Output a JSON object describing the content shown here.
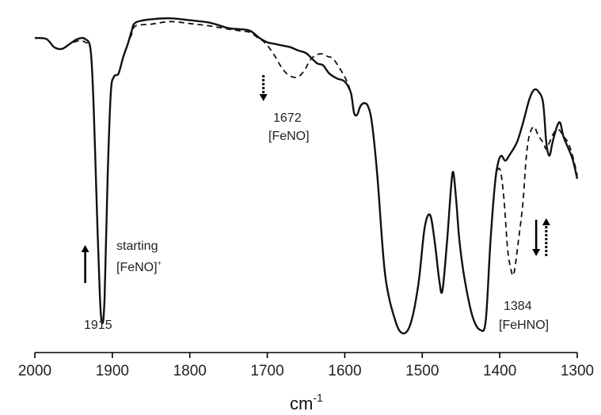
{
  "chart_data": {
    "type": "line",
    "xlabel": "cm",
    "xlabel_superscript": "-1",
    "xlim": [
      2000,
      1300
    ],
    "x_reversed": true,
    "ylim": [
      0,
      1
    ],
    "y_axis_shown": false,
    "grid": false,
    "ticks": [
      2000,
      1900,
      1800,
      1700,
      1600,
      1500,
      1400,
      1300
    ],
    "tick_labels": [
      "2000",
      "1900",
      "1800",
      "1700",
      "1600",
      "1500",
      "1400",
      "1300"
    ],
    "series": [
      {
        "style": "solid",
        "points": [
          [
            2000,
            0.918
          ],
          [
            1985,
            0.915
          ],
          [
            1975,
            0.89
          ],
          [
            1965,
            0.885
          ],
          [
            1955,
            0.9
          ],
          [
            1945,
            0.915
          ],
          [
            1935,
            0.915
          ],
          [
            1928,
            0.88
          ],
          [
            1924,
            0.7
          ],
          [
            1920,
            0.4
          ],
          [
            1916,
            0.13
          ],
          [
            1913,
            0.05
          ],
          [
            1910,
            0.13
          ],
          [
            1906,
            0.5
          ],
          [
            1902,
            0.75
          ],
          [
            1898,
            0.8
          ],
          [
            1892,
            0.81
          ],
          [
            1886,
            0.86
          ],
          [
            1880,
            0.9
          ],
          [
            1875,
            0.94
          ],
          [
            1870,
            0.965
          ],
          [
            1850,
            0.975
          ],
          [
            1825,
            0.978
          ],
          [
            1800,
            0.972
          ],
          [
            1775,
            0.965
          ],
          [
            1750,
            0.948
          ],
          [
            1735,
            0.945
          ],
          [
            1722,
            0.94
          ],
          [
            1710,
            0.918
          ],
          [
            1700,
            0.905
          ],
          [
            1690,
            0.9
          ],
          [
            1680,
            0.895
          ],
          [
            1670,
            0.89
          ],
          [
            1660,
            0.88
          ],
          [
            1650,
            0.872
          ],
          [
            1640,
            0.85
          ],
          [
            1635,
            0.84
          ],
          [
            1628,
            0.835
          ],
          [
            1620,
            0.81
          ],
          [
            1610,
            0.795
          ],
          [
            1603,
            0.79
          ],
          [
            1598,
            0.78
          ],
          [
            1592,
            0.75
          ],
          [
            1588,
            0.69
          ],
          [
            1584,
            0.685
          ],
          [
            1580,
            0.71
          ],
          [
            1575,
            0.72
          ],
          [
            1570,
            0.71
          ],
          [
            1565,
            0.66
          ],
          [
            1558,
            0.5
          ],
          [
            1548,
            0.2
          ],
          [
            1535,
            0.06
          ],
          [
            1525,
            0.02
          ],
          [
            1515,
            0.05
          ],
          [
            1505,
            0.17
          ],
          [
            1497,
            0.34
          ],
          [
            1490,
            0.38
          ],
          [
            1484,
            0.3
          ],
          [
            1478,
            0.18
          ],
          [
            1474,
            0.15
          ],
          [
            1468,
            0.3
          ],
          [
            1463,
            0.46
          ],
          [
            1460,
            0.51
          ],
          [
            1456,
            0.42
          ],
          [
            1452,
            0.3
          ],
          [
            1445,
            0.18
          ],
          [
            1435,
            0.07
          ],
          [
            1425,
            0.03
          ],
          [
            1418,
            0.06
          ],
          [
            1412,
            0.3
          ],
          [
            1406,
            0.48
          ],
          [
            1402,
            0.54
          ],
          [
            1398,
            0.56
          ],
          [
            1393,
            0.545
          ],
          [
            1388,
            0.56
          ],
          [
            1378,
            0.6
          ],
          [
            1370,
            0.66
          ],
          [
            1362,
            0.73
          ],
          [
            1356,
            0.76
          ],
          [
            1350,
            0.755
          ],
          [
            1344,
            0.72
          ],
          [
            1340,
            0.6
          ],
          [
            1336,
            0.56
          ],
          [
            1332,
            0.6
          ],
          [
            1326,
            0.65
          ],
          [
            1322,
            0.66
          ],
          [
            1318,
            0.62
          ],
          [
            1312,
            0.585
          ],
          [
            1306,
            0.55
          ],
          [
            1300,
            0.49
          ]
        ]
      },
      {
        "style": "dashed",
        "points": [
          [
            1950,
            0.905
          ],
          [
            1942,
            0.91
          ],
          [
            1935,
            0.905
          ],
          [
            1928,
            0.88
          ],
          [
            1924,
            0.7
          ],
          [
            1920,
            0.4
          ],
          [
            1916,
            0.13
          ],
          [
            1913,
            0.05
          ],
          [
            1910,
            0.13
          ],
          [
            1906,
            0.5
          ],
          [
            1902,
            0.75
          ],
          [
            1898,
            0.8
          ],
          [
            1892,
            0.81
          ],
          [
            1886,
            0.86
          ],
          [
            1880,
            0.9
          ],
          [
            1875,
            0.93
          ],
          [
            1870,
            0.955
          ],
          [
            1850,
            0.96
          ],
          [
            1825,
            0.968
          ],
          [
            1800,
            0.962
          ],
          [
            1775,
            0.955
          ],
          [
            1750,
            0.945
          ],
          [
            1735,
            0.94
          ],
          [
            1722,
            0.935
          ],
          [
            1712,
            0.918
          ],
          [
            1705,
            0.908
          ],
          [
            1698,
            0.89
          ],
          [
            1690,
            0.862
          ],
          [
            1682,
            0.83
          ],
          [
            1675,
            0.81
          ],
          [
            1668,
            0.8
          ],
          [
            1660,
            0.8
          ],
          [
            1652,
            0.82
          ],
          [
            1645,
            0.85
          ],
          [
            1638,
            0.865
          ],
          [
            1630,
            0.87
          ],
          [
            1622,
            0.862
          ],
          [
            1615,
            0.855
          ],
          [
            1605,
            0.82
          ],
          [
            1598,
            0.79
          ],
          [
            1592,
            0.75
          ],
          [
            1588,
            0.69
          ],
          [
            1584,
            0.685
          ],
          [
            1580,
            0.71
          ],
          [
            1575,
            0.72
          ],
          [
            1570,
            0.71
          ],
          [
            1565,
            0.66
          ],
          [
            1558,
            0.5
          ],
          [
            1548,
            0.2
          ],
          [
            1535,
            0.06
          ],
          [
            1525,
            0.02
          ],
          [
            1515,
            0.05
          ],
          [
            1505,
            0.17
          ],
          [
            1497,
            0.34
          ],
          [
            1490,
            0.38
          ],
          [
            1484,
            0.3
          ],
          [
            1478,
            0.18
          ],
          [
            1474,
            0.15
          ],
          [
            1468,
            0.3
          ],
          [
            1463,
            0.46
          ],
          [
            1460,
            0.51
          ],
          [
            1456,
            0.42
          ],
          [
            1452,
            0.3
          ],
          [
            1445,
            0.18
          ],
          [
            1435,
            0.07
          ],
          [
            1425,
            0.03
          ],
          [
            1418,
            0.06
          ],
          [
            1412,
            0.3
          ],
          [
            1406,
            0.48
          ],
          [
            1400,
            0.52
          ],
          [
            1395,
            0.44
          ],
          [
            1390,
            0.28
          ],
          [
            1386,
            0.22
          ],
          [
            1382,
            0.2
          ],
          [
            1376,
            0.3
          ],
          [
            1370,
            0.42
          ],
          [
            1366,
            0.55
          ],
          [
            1362,
            0.62
          ],
          [
            1356,
            0.648
          ],
          [
            1350,
            0.62
          ],
          [
            1344,
            0.6
          ],
          [
            1340,
            0.58
          ],
          [
            1336,
            0.6
          ],
          [
            1330,
            0.63
          ],
          [
            1324,
            0.64
          ],
          [
            1318,
            0.62
          ],
          [
            1312,
            0.6
          ],
          [
            1306,
            0.56
          ],
          [
            1300,
            0.5
          ]
        ]
      }
    ],
    "annotations": [
      {
        "text": "1915",
        "x": 1915
      },
      {
        "text": "starting",
        "x": 1915
      },
      {
        "text": "[FeNO]",
        "superscript": "+",
        "x": 1915
      },
      {
        "text": "1672",
        "x": 1672
      },
      {
        "text": "[FeNO]",
        "x": 1672
      },
      {
        "text": "1384",
        "x": 1384
      },
      {
        "text": "[FeHNO]",
        "x": 1384
      }
    ],
    "arrows": [
      {
        "style": "solid",
        "direction": "up",
        "x": 1935
      },
      {
        "style": "dashed",
        "direction": "down",
        "x": 1705
      },
      {
        "style": "solid",
        "direction": "down",
        "x": 1353
      },
      {
        "style": "dashed",
        "direction": "up",
        "x": 1340
      }
    ]
  }
}
